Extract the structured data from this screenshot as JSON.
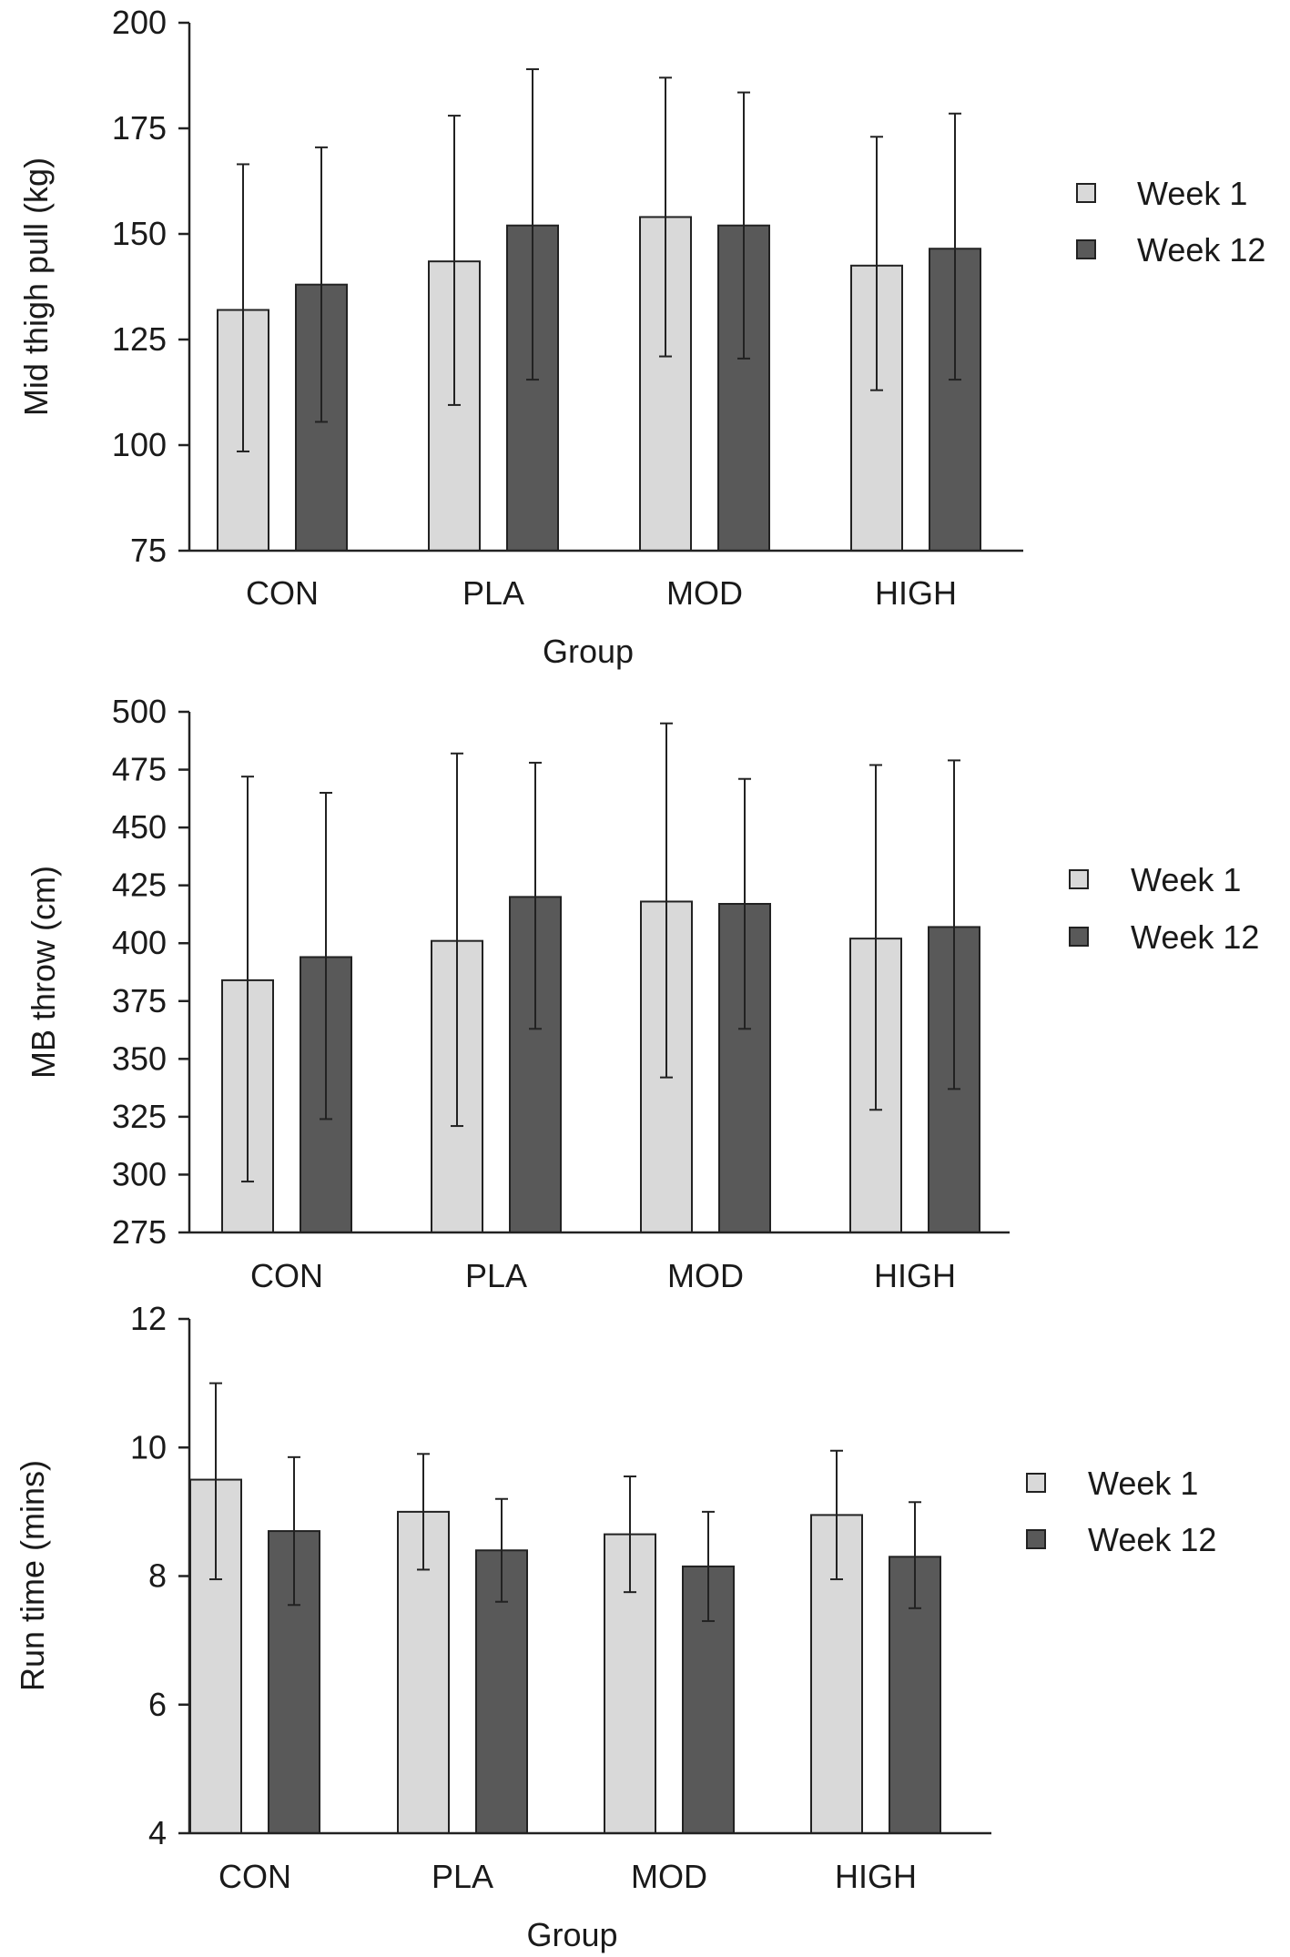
{
  "chart_data": [
    {
      "type": "bar",
      "ylabel": "Mid thigh pull (kg)",
      "xlabel": "Group",
      "ylim": [
        75,
        200
      ],
      "yticks": [
        75,
        100,
        125,
        150,
        175,
        200
      ],
      "categories": [
        "CON",
        "PLA",
        "MOD",
        "HIGH"
      ],
      "series": [
        {
          "name": "Week 1",
          "color": "#d9d9d9",
          "values": [
            132,
            143.5,
            154,
            142.5
          ],
          "err_low": [
            98.5,
            109.5,
            121,
            113
          ],
          "err_high": [
            166.5,
            178,
            187,
            173
          ]
        },
        {
          "name": "Week 12",
          "color": "#595959",
          "values": [
            138,
            152,
            152,
            146.5
          ],
          "err_low": [
            105.5,
            115.5,
            120.5,
            115.5
          ],
          "err_high": [
            170.5,
            189,
            183.5,
            178.5
          ]
        }
      ],
      "legend": "right"
    },
    {
      "type": "bar",
      "ylabel": "MB throw (cm)",
      "xlabel": "",
      "ylim": [
        275,
        500
      ],
      "yticks": [
        275,
        300,
        325,
        350,
        375,
        400,
        425,
        450,
        475,
        500
      ],
      "categories": [
        "CON",
        "PLA",
        "MOD",
        "HIGH"
      ],
      "series": [
        {
          "name": "Week 1",
          "color": "#d9d9d9",
          "values": [
            384,
            401,
            418,
            402
          ],
          "err_low": [
            297,
            321,
            342,
            328
          ],
          "err_high": [
            472,
            482,
            495,
            477
          ]
        },
        {
          "name": "Week 12",
          "color": "#595959",
          "values": [
            394,
            420,
            417,
            407
          ],
          "err_low": [
            324,
            363,
            363,
            337
          ],
          "err_high": [
            465,
            478,
            471,
            479
          ]
        }
      ],
      "legend": "right"
    },
    {
      "type": "bar",
      "ylabel": "Run time (mins)",
      "xlabel": "Group",
      "ylim": [
        4,
        12
      ],
      "yticks": [
        4,
        6,
        8,
        10,
        12
      ],
      "categories": [
        "CON",
        "PLA",
        "MOD",
        "HIGH"
      ],
      "series": [
        {
          "name": "Week 1",
          "color": "#d9d9d9",
          "values": [
            9.5,
            9.0,
            8.65,
            8.95
          ],
          "err_low": [
            7.95,
            8.1,
            7.75,
            7.95
          ],
          "err_high": [
            11.0,
            9.9,
            9.55,
            9.95
          ]
        },
        {
          "name": "Week 12",
          "color": "#595959",
          "values": [
            8.7,
            8.4,
            8.15,
            8.3
          ],
          "err_low": [
            7.55,
            7.6,
            7.3,
            7.5
          ],
          "err_high": [
            9.85,
            9.2,
            9.0,
            9.15
          ]
        }
      ],
      "legend": "right"
    }
  ]
}
